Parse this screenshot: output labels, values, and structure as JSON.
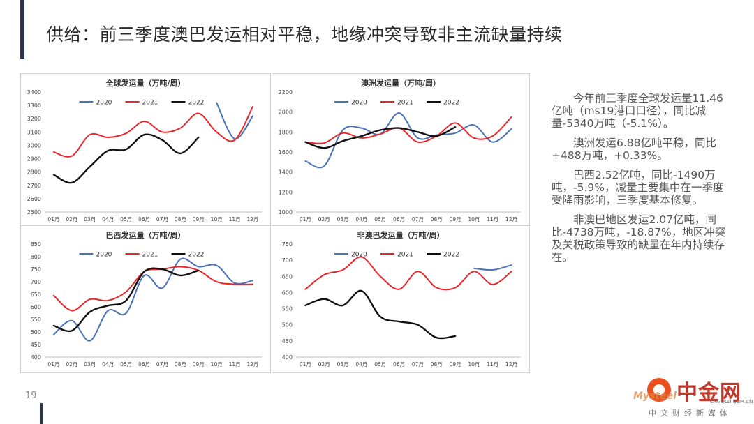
{
  "slide": {
    "title": "供给：前三季度澳巴发运相对平稳，地缘冲突导致非主流缺量持续",
    "page_number": "19"
  },
  "commentary": [
    "今年前三季度全球发运量11.46亿吨（ms19港口口径），同比减量-5340万吨（-5.1%）。",
    "澳洲发运6.88亿吨平稳，同比+488万吨，+0.33%。",
    "巴西2.52亿吨，同比-1490万吨，-5.9%，减量主要集中在一季度受降雨影响，三季度基本修复。",
    "非澳巴地区发运2.07亿吨，同比-4738万吨，-18.87%，地区冲突及关税政策导致的缺量在年内持续存在。"
  ],
  "logo": {
    "brand": "中金网",
    "url": "CNGOLD.COM.CN",
    "sub": "中文财经新媒体",
    "watermark": "Mysteel"
  },
  "colors": {
    "s2020": "#4a72b8",
    "s2021": "#e8262a",
    "s2022": "#111111",
    "accent": "#2e3650"
  },
  "chart_data": [
    {
      "type": "line",
      "title": "全球发运量（万吨/周）",
      "categories": [
        "01月",
        "02月",
        "03月",
        "04月",
        "05月",
        "06月",
        "07月",
        "08月",
        "09月",
        "10月",
        "11月",
        "12月"
      ],
      "ylim": [
        2500,
        3400
      ],
      "yticks": [
        2500,
        2600,
        2700,
        2800,
        2900,
        3000,
        3100,
        3200,
        3300,
        3400
      ],
      "series": [
        {
          "name": "2020",
          "values": [
            null,
            null,
            null,
            null,
            null,
            null,
            null,
            null,
            null,
            3320,
            3050,
            3220
          ]
        },
        {
          "name": "2021",
          "values": [
            2950,
            2920,
            3080,
            3060,
            3090,
            3180,
            3100,
            3130,
            3240,
            3100,
            3040,
            3290
          ]
        },
        {
          "name": "2022",
          "values": [
            2780,
            2720,
            2840,
            2960,
            2970,
            3080,
            3040,
            2940,
            3060,
            null,
            null,
            null
          ]
        }
      ]
    },
    {
      "type": "line",
      "title": "澳洲发运量（万吨/周）",
      "categories": [
        "01月",
        "02月",
        "03月",
        "04月",
        "05月",
        "06月",
        "07月",
        "08月",
        "09月",
        "10月",
        "11月",
        "12月"
      ],
      "ylim": [
        1000,
        2200
      ],
      "yticks": [
        1000,
        1200,
        1400,
        1600,
        1800,
        2000,
        2200
      ],
      "series": [
        {
          "name": "2020",
          "values": [
            1510,
            1460,
            1820,
            1840,
            1780,
            1990,
            1740,
            1770,
            1790,
            1870,
            1700,
            1830
          ]
        },
        {
          "name": "2021",
          "values": [
            1700,
            1690,
            1790,
            1740,
            1780,
            1840,
            1700,
            1760,
            1890,
            1740,
            1760,
            1950
          ]
        },
        {
          "name": "2022",
          "values": [
            1700,
            1640,
            1710,
            1760,
            1820,
            1840,
            1800,
            1760,
            1850,
            null,
            null,
            null
          ]
        }
      ]
    },
    {
      "type": "line",
      "title": "巴西发运量（万吨/周）",
      "categories": [
        "01月",
        "02月",
        "03月",
        "04月",
        "05月",
        "06月",
        "07月",
        "08月",
        "09月",
        "10月",
        "11月",
        "12月"
      ],
      "ylim": [
        400,
        850
      ],
      "yticks": [
        400,
        450,
        500,
        550,
        600,
        650,
        700,
        750,
        800,
        850
      ],
      "series": [
        {
          "name": "2020",
          "values": [
            490,
            545,
            465,
            585,
            575,
            725,
            675,
            790,
            760,
            765,
            695,
            705
          ]
        },
        {
          "name": "2021",
          "values": [
            645,
            585,
            630,
            625,
            660,
            740,
            750,
            760,
            745,
            700,
            690,
            690
          ]
        },
        {
          "name": "2022",
          "values": [
            525,
            505,
            580,
            605,
            625,
            740,
            750,
            725,
            745,
            null,
            null,
            null
          ]
        }
      ]
    },
    {
      "type": "line",
      "title": "非澳巴发运量（万吨/周）",
      "categories": [
        "01月",
        "02月",
        "03月",
        "04月",
        "05月",
        "06月",
        "07月",
        "08月",
        "09月",
        "10月",
        "11月",
        "12月"
      ],
      "ylim": [
        400,
        750
      ],
      "yticks": [
        400,
        450,
        500,
        550,
        600,
        650,
        700,
        750
      ],
      "series": [
        {
          "name": "2020",
          "values": [
            null,
            null,
            null,
            null,
            null,
            null,
            null,
            null,
            null,
            675,
            670,
            685
          ]
        },
        {
          "name": "2021",
          "values": [
            610,
            655,
            670,
            710,
            650,
            610,
            665,
            615,
            615,
            665,
            625,
            665
          ]
        },
        {
          "name": "2022",
          "values": [
            560,
            580,
            560,
            605,
            525,
            510,
            500,
            460,
            465,
            null,
            null,
            null
          ]
        }
      ]
    }
  ]
}
